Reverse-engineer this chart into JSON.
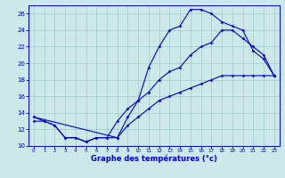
{
  "title": "Graphe des températures (°c)",
  "bg_color": "#cce8e8",
  "line_color": "#0000cc",
  "grid_color": "#99cccc",
  "xlim": [
    -0.5,
    23.5
  ],
  "ylim": [
    10,
    27
  ],
  "xticks": [
    0,
    1,
    2,
    3,
    4,
    5,
    6,
    7,
    8,
    9,
    10,
    11,
    12,
    13,
    14,
    15,
    16,
    17,
    18,
    19,
    20,
    21,
    22,
    23
  ],
  "yticks": [
    10,
    12,
    14,
    16,
    18,
    20,
    22,
    24,
    26
  ],
  "curve1_x": [
    0,
    1,
    2,
    3,
    4,
    5,
    6,
    7,
    8,
    9,
    10,
    11,
    12,
    13,
    14,
    15,
    16,
    17,
    18,
    19,
    20,
    21,
    22,
    23
  ],
  "curve1_y": [
    13,
    13,
    12.5,
    11,
    11,
    10.5,
    11,
    11,
    11,
    12.5,
    13.5,
    14.5,
    15.5,
    16,
    16.5,
    17,
    17.5,
    18,
    18.5,
    18.5,
    18.5,
    18.5,
    18.5,
    18.5
  ],
  "curve2_x": [
    0,
    1,
    2,
    3,
    4,
    5,
    6,
    7,
    8,
    9,
    10,
    11,
    12,
    13,
    14,
    15,
    16,
    17,
    18,
    19,
    20,
    21,
    22,
    23
  ],
  "curve2_y": [
    13.5,
    13,
    12.5,
    11,
    11,
    10.5,
    11,
    11,
    13,
    14.5,
    15.5,
    16.5,
    18,
    19,
    19.5,
    21,
    22,
    22.5,
    24,
    24,
    23,
    22,
    21,
    18.5
  ],
  "curve3_x": [
    0,
    8,
    9,
    10,
    11,
    12,
    13,
    14,
    15,
    16,
    17,
    18,
    19,
    20,
    21,
    22,
    23
  ],
  "curve3_y": [
    13.5,
    11,
    13.5,
    15.5,
    19.5,
    22,
    24,
    24.5,
    26.5,
    26.5,
    26,
    25,
    24.5,
    24,
    21.5,
    20.5,
    18.5
  ]
}
